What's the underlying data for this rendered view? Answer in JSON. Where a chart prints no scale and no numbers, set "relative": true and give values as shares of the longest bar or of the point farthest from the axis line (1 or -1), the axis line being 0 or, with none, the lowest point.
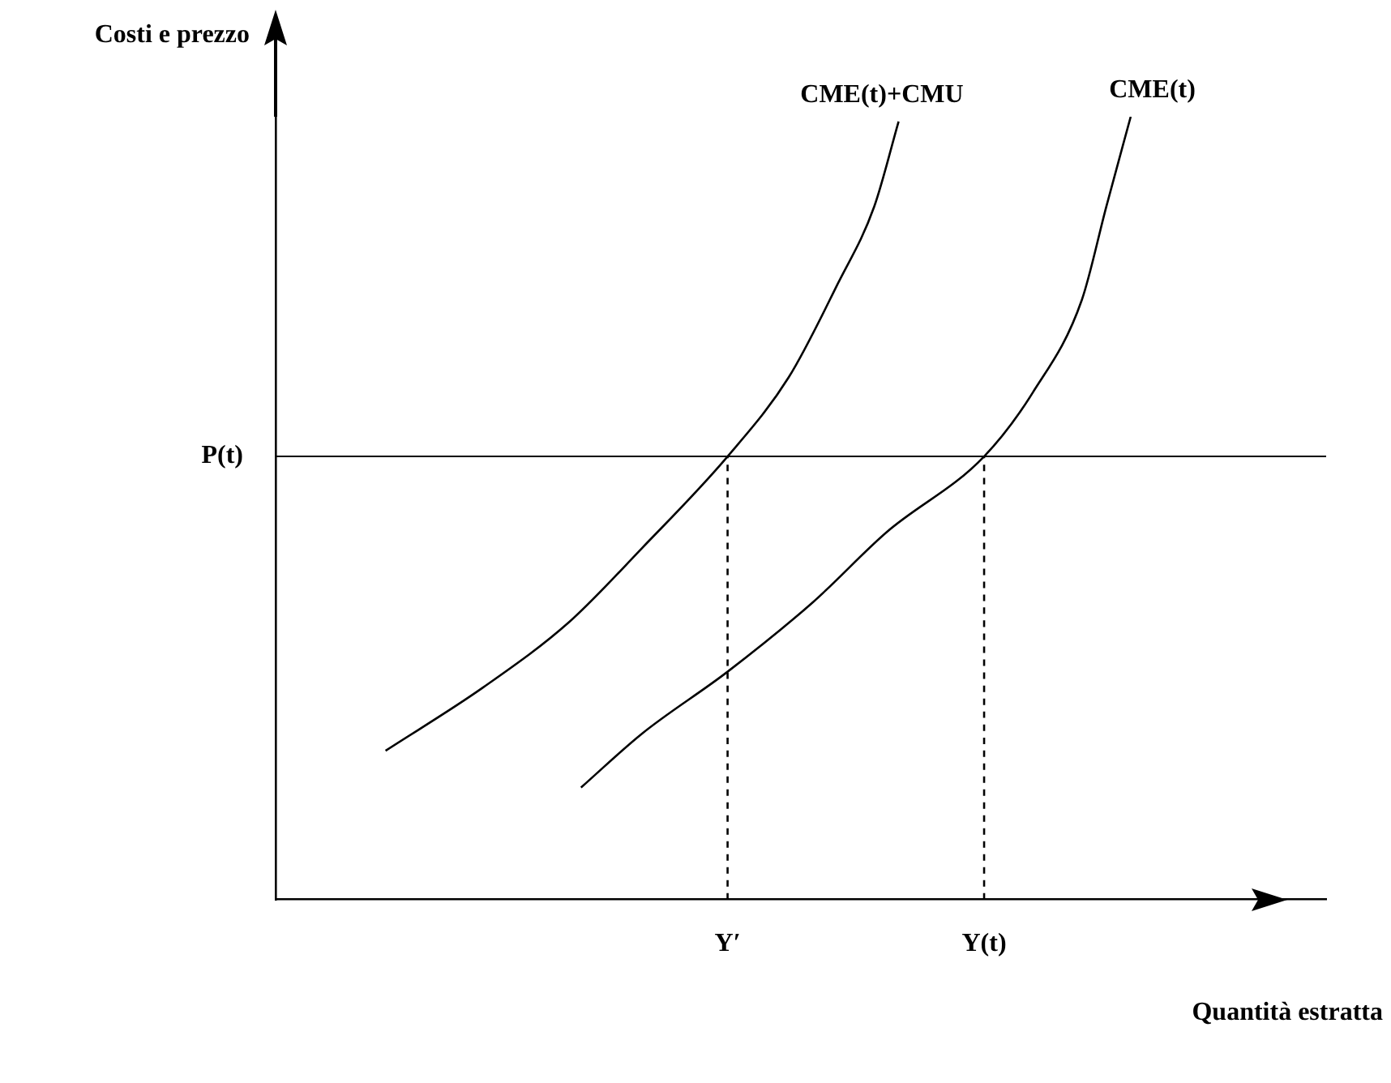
{
  "chart_data": {
    "type": "line",
    "relative": true,
    "xlabel": "Quantità estratta",
    "ylabel": "Costi e prezzo",
    "categories": [
      null,
      null,
      null,
      null,
      null,
      null,
      null,
      null,
      null,
      null,
      null,
      null,
      null,
      null,
      null,
      null,
      null,
      null,
      null,
      null,
      null,
      null,
      null,
      null,
      null,
      null,
      null,
      null,
      null,
      null,
      null,
      null,
      null,
      null,
      null,
      null,
      null,
      "Y′",
      null,
      null,
      null,
      null,
      null,
      null,
      null,
      null,
      null,
      null,
      null,
      null,
      null,
      null,
      null,
      null,
      null,
      null,
      null,
      null,
      "Y(t)",
      null,
      null,
      null,
      null,
      null,
      null,
      null,
      null,
      null,
      null,
      null,
      null,
      null,
      null,
      null,
      null,
      null,
      null,
      null,
      null,
      null,
      null,
      null,
      null,
      null,
      null,
      null,
      null
    ],
    "legend": false,
    "grid": false,
    "marker": "none",
    "line_style": "solid",
    "series": [
      {
        "name": "CME(t)+CMU",
        "color": "#000000",
        "values": [
          null,
          null,
          null,
          null,
          null,
          null,
          null,
          null,
          null,
          0.19,
          null,
          null,
          null,
          null,
          null,
          null,
          null,
          0.271,
          null,
          null,
          null,
          null,
          null,
          null,
          0.354,
          null,
          null,
          null,
          null,
          null,
          0.449,
          null,
          null,
          null,
          null,
          null,
          null,
          0.566,
          null,
          null,
          null,
          null,
          0.667,
          null,
          null,
          null,
          0.786,
          null,
          null,
          0.885,
          null,
          0.994,
          null,
          null,
          null,
          null,
          null,
          null,
          null,
          null,
          null,
          null,
          null,
          null,
          null,
          null,
          null,
          null,
          null,
          null,
          null,
          null,
          null,
          null,
          null,
          null,
          null,
          null,
          null,
          null,
          null,
          null,
          null,
          null,
          null,
          null,
          null
        ]
      },
      {
        "name": "CME(t)",
        "color": "#000000",
        "values": [
          null,
          null,
          null,
          null,
          null,
          null,
          null,
          null,
          null,
          null,
          null,
          null,
          null,
          null,
          null,
          null,
          null,
          null,
          null,
          null,
          null,
          null,
          null,
          null,
          null,
          0.143,
          null,
          null,
          null,
          null,
          0.212,
          null,
          null,
          null,
          null,
          null,
          null,
          0.291,
          null,
          null,
          null,
          null,
          null,
          null,
          0.38,
          null,
          null,
          null,
          null,
          null,
          0.469,
          null,
          null,
          null,
          null,
          null,
          null,
          null,
          0.566,
          null,
          null,
          null,
          0.648,
          null,
          null,
          null,
          0.766,
          null,
          0.885,
          null,
          1.0,
          null,
          null,
          null,
          null,
          null,
          null,
          null,
          null,
          null,
          null,
          null,
          null,
          null,
          null,
          null,
          null
        ]
      },
      {
        "color": "#000000",
        "line_style": "dashed",
        "x": [
          "Y′",
          "Y′"
        ],
        "values": [
          0,
          0.566
        ]
      },
      {
        "color": "#000000",
        "line_style": "dashed",
        "x": [
          "Y(t)",
          "Y(t)"
        ],
        "values": [
          0,
          0.566
        ]
      }
    ],
    "ref_lines": [
      {
        "axis": "y",
        "value": 0.566,
        "label": "P(t)"
      }
    ]
  }
}
